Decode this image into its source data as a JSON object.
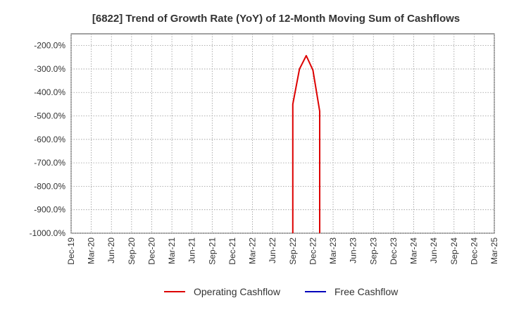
{
  "chart_data": {
    "type": "line",
    "title": "[6822]  Trend of Growth Rate (YoY) of 12-Month Moving Sum of Cashflows",
    "xlabel": "",
    "ylabel": "",
    "x": [
      "Dec-19",
      "Mar-20",
      "Jun-20",
      "Sep-20",
      "Dec-20",
      "Mar-21",
      "Jun-21",
      "Sep-21",
      "Dec-21",
      "Mar-22",
      "Jun-22",
      "Sep-22",
      "Dec-22",
      "Mar-23",
      "Jun-23",
      "Sep-23",
      "Dec-23",
      "Mar-24",
      "Jun-24",
      "Sep-24",
      "Dec-24",
      "Mar-25"
    ],
    "y_ticks": [
      "-200.0%",
      "-300.0%",
      "-400.0%",
      "-500.0%",
      "-600.0%",
      "-700.0%",
      "-800.0%",
      "-900.0%",
      "-1000.0%"
    ],
    "ylim": [
      -1000,
      -150
    ],
    "grid": true,
    "legend_position": "bottom",
    "series": [
      {
        "name": "Operating Cashflow",
        "color": "#dd0000",
        "points": [
          {
            "x": "2022-09",
            "y": -1000
          },
          {
            "x": "2022-09",
            "y": -450
          },
          {
            "x": "2022-10",
            "y": -300
          },
          {
            "x": "2022-11",
            "y": -243
          },
          {
            "x": "2022-12",
            "y": -305
          },
          {
            "x": "2023-01",
            "y": -480
          },
          {
            "x": "2023-01",
            "y": -1000
          }
        ]
      },
      {
        "name": "Free Cashflow",
        "color": "#0000bb",
        "points": []
      }
    ]
  }
}
